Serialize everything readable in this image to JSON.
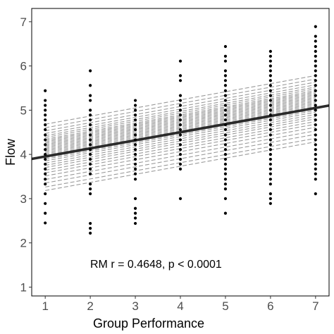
{
  "chart_data": {
    "type": "scatter",
    "xlabel": "Group Performance",
    "ylabel": "Flow",
    "xlim": [
      0.7,
      7.3
    ],
    "ylim": [
      0.8,
      7.3
    ],
    "x_ticks": [
      1,
      2,
      3,
      4,
      5,
      6,
      7
    ],
    "y_ticks": [
      1,
      2,
      3,
      4,
      5,
      6,
      7
    ],
    "grid": false,
    "annotation": "RM r = 0.4648, p < 0.0001",
    "common_fit": {
      "slope": 0.183,
      "intercept": 3.77,
      "x_range": [
        0.7,
        7.3
      ]
    },
    "individual_fits": {
      "slope": 0.1833,
      "x_range": [
        1,
        7
      ],
      "intercepts": [
        3.0,
        3.08,
        3.17,
        3.25,
        3.33,
        3.4,
        3.46,
        3.52,
        3.57,
        3.62,
        3.67,
        3.71,
        3.74,
        3.77,
        3.8,
        3.83,
        3.86,
        3.89,
        3.92,
        3.95,
        3.98,
        4.01,
        4.04,
        4.07,
        4.1,
        4.13,
        4.16,
        4.2,
        4.24,
        4.29,
        4.35,
        4.42,
        4.5
      ]
    },
    "points": [
      {
        "x": 1,
        "y": [
          2.45,
          2.67,
          2.89,
          3.11,
          3.33,
          3.44,
          3.56,
          3.67,
          3.78,
          3.89,
          4.0,
          4.11,
          4.22,
          4.33,
          4.44,
          4.56,
          4.67,
          4.78,
          4.89,
          5.0,
          5.11,
          5.22,
          5.44
        ]
      },
      {
        "x": 2,
        "y": [
          2.22,
          2.33,
          2.44,
          3.11,
          3.22,
          3.33,
          3.56,
          3.67,
          3.78,
          3.89,
          4.0,
          4.11,
          4.22,
          4.33,
          4.44,
          4.56,
          4.67,
          4.78,
          4.89,
          5.0,
          5.22,
          5.33,
          5.56,
          5.89
        ]
      },
      {
        "x": 3,
        "y": [
          2.44,
          2.56,
          2.67,
          2.78,
          3.0,
          3.44,
          3.56,
          3.67,
          3.78,
          3.89,
          4.0,
          4.11,
          4.22,
          4.33,
          4.44,
          4.56,
          4.67,
          4.78,
          4.89,
          5.0,
          5.11,
          5.22
        ]
      },
      {
        "x": 4,
        "y": [
          3.0,
          3.67,
          3.78,
          3.89,
          4.0,
          4.11,
          4.22,
          4.33,
          4.44,
          4.56,
          4.67,
          4.78,
          4.89,
          5.0,
          5.11,
          5.22,
          5.33,
          5.67,
          5.78,
          6.11
        ]
      },
      {
        "x": 5,
        "y": [
          2.67,
          3.0,
          3.22,
          3.33,
          3.44,
          3.56,
          3.67,
          3.78,
          3.89,
          4.0,
          4.11,
          4.22,
          4.33,
          4.44,
          4.56,
          4.67,
          4.78,
          4.89,
          5.0,
          5.11,
          5.22,
          5.33,
          5.44,
          5.56,
          5.67,
          5.78,
          5.89,
          6.11,
          6.22,
          6.44
        ]
      },
      {
        "x": 6,
        "y": [
          2.89,
          3.0,
          3.11,
          3.33,
          3.44,
          3.56,
          3.67,
          3.78,
          3.89,
          4.0,
          4.11,
          4.22,
          4.33,
          4.44,
          4.56,
          4.67,
          4.78,
          4.89,
          5.0,
          5.11,
          5.22,
          5.33,
          5.44,
          5.56,
          5.67,
          5.78,
          5.89,
          6.0,
          6.11,
          6.22,
          6.33
        ]
      },
      {
        "x": 7,
        "y": [
          3.11,
          3.44,
          3.56,
          3.67,
          3.78,
          3.89,
          4.0,
          4.11,
          4.22,
          4.33,
          4.44,
          4.56,
          4.67,
          4.78,
          4.89,
          5.0,
          5.11,
          5.22,
          5.33,
          5.44,
          5.56,
          5.67,
          5.78,
          5.89,
          6.0,
          6.11,
          6.22,
          6.33,
          6.44,
          6.56,
          6.67,
          6.89
        ]
      }
    ]
  }
}
